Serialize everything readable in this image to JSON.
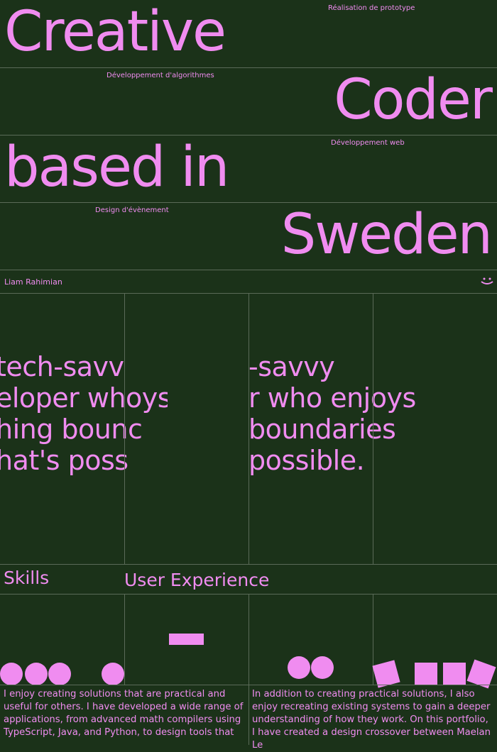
{
  "hero": {
    "words": [
      "Creative",
      "Coder",
      "based in",
      "Sweden"
    ],
    "tags": [
      "Réalisation de prototype",
      "Développement d'algorithmes",
      "Développement web",
      "Design d'évènement"
    ]
  },
  "name": "Liam Rahimian",
  "statement": {
    "left_lines": [
      "tech-savv",
      "eloper whoys",
      "hing bounc",
      "hat's poss"
    ],
    "right_lines": [
      "-savvy",
      "r who enjoys",
      "boundaries",
      "possible."
    ]
  },
  "section": {
    "title": "Skills",
    "subtitle": "User Experience"
  },
  "paragraphs": [
    "I enjoy creating solutions that are practical and useful for others. I have developed a wide range of applications, from advanced math compilers using TypeScript, Java, and Python, to design tools that",
    "In addition to creating practical solutions, I also enjoy recreating existing systems to gain a deeper understanding of how they work. On this portfolio, I have created a design crossover between Maelan Le"
  ]
}
